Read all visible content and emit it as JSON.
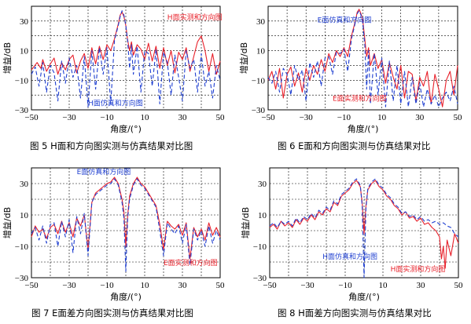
{
  "chart_data": [
    {
      "type": "line",
      "caption": "图 5   H面和方向图实测与仿真结果对比图",
      "xlabel": "角度/(°)",
      "ylabel": "增益/dB",
      "xlim": [
        -50,
        50
      ],
      "ylim": [
        -30,
        40
      ],
      "xticks": [
        -50,
        -30,
        -10,
        10,
        30,
        50
      ],
      "yticks": [
        -30,
        -10,
        10,
        30
      ],
      "grid": true,
      "series": [
        {
          "label": "H面实测和方向图",
          "color": "#e8202a",
          "dash": "solid",
          "x": [
            -50,
            -47,
            -45,
            -44,
            -42,
            -40,
            -38,
            -36,
            -34,
            -32,
            -30,
            -28,
            -26,
            -24,
            -22,
            -20,
            -18,
            -16,
            -14,
            -12,
            -10,
            -8,
            -6,
            -4,
            -3,
            -2,
            -1,
            0,
            1,
            2,
            3,
            4,
            6,
            8,
            10,
            12,
            14,
            16,
            18,
            20,
            22,
            24,
            26,
            28,
            30,
            32,
            34,
            36,
            38,
            40,
            42,
            44,
            46,
            48,
            50
          ],
          "y": [
            -3,
            2,
            -2,
            4,
            -4,
            1,
            5,
            -6,
            2,
            -3,
            4,
            7,
            -5,
            3,
            8,
            -2,
            12,
            1,
            13,
            4,
            14,
            10,
            18,
            28,
            34,
            36,
            33,
            27,
            17,
            10,
            16,
            7,
            14,
            11,
            4,
            15,
            3,
            13,
            -2,
            12,
            0,
            10,
            -5,
            9,
            4,
            12,
            -4,
            6,
            16,
            20,
            10,
            -4,
            8,
            -6,
            3
          ]
        },
        {
          "label": "H面仿真和方向图",
          "color": "#1f3fd0",
          "dash": "5,3",
          "x": [
            -50,
            -48,
            -46,
            -44,
            -42,
            -40,
            -38,
            -36,
            -34,
            -32,
            -30,
            -28,
            -26,
            -24,
            -22,
            -20,
            -18,
            -16,
            -14,
            -12,
            -10,
            -8,
            -6,
            -4,
            -3,
            -2,
            -1,
            0,
            1,
            2,
            3,
            4,
            6,
            8,
            10,
            12,
            14,
            16,
            18,
            20,
            22,
            24,
            26,
            28,
            30,
            32,
            34,
            36,
            38,
            40,
            42,
            44,
            46,
            48,
            50
          ],
          "y": [
            -6,
            -1,
            -14,
            2,
            -18,
            0,
            -5,
            -24,
            3,
            -12,
            5,
            -8,
            0,
            -22,
            6,
            -28,
            10,
            -16,
            12,
            -6,
            12,
            -26,
            17,
            27,
            33,
            37,
            34,
            27,
            16,
            -2,
            14,
            -6,
            13,
            -18,
            10,
            8,
            -14,
            11,
            -26,
            9,
            2,
            -20,
            7,
            -8,
            -24,
            10,
            -2,
            4,
            -18,
            8,
            -14,
            -4,
            -22,
            0,
            -10
          ]
        }
      ],
      "annotations": [
        {
          "text": "H面实测和方向图",
          "color": "#e8202a",
          "x": 22,
          "y": 31
        },
        {
          "text": "H面仿真和方向图",
          "color": "#1f3fd0",
          "x": -20,
          "y": -27
        }
      ]
    },
    {
      "type": "line",
      "caption": "图 6   E面和方向图实测与仿真结果对比",
      "xlabel": "角度/(°)",
      "ylabel": "增益/dB",
      "xlim": [
        -50,
        50
      ],
      "ylim": [
        -30,
        40
      ],
      "xticks": [
        -50,
        -30,
        -10,
        10,
        30,
        50
      ],
      "yticks": [
        -30,
        -10,
        10,
        30
      ],
      "grid": true,
      "series": [
        {
          "label": "E面实测和方向图",
          "color": "#e8202a",
          "dash": "solid",
          "x": [
            -50,
            -48,
            -46,
            -44,
            -42,
            -40,
            -38,
            -36,
            -34,
            -32,
            -30,
            -28,
            -26,
            -24,
            -22,
            -20,
            -18,
            -16,
            -14,
            -12,
            -10,
            -8,
            -6,
            -4,
            -3,
            -2,
            -1,
            0,
            1,
            2,
            3,
            4,
            6,
            8,
            10,
            12,
            14,
            16,
            18,
            20,
            22,
            24,
            26,
            28,
            30,
            32,
            34,
            36,
            38,
            40,
            42,
            44,
            46,
            48,
            50
          ],
          "y": [
            -10,
            -4,
            -16,
            -2,
            -22,
            -6,
            -1,
            -14,
            -5,
            -18,
            -2,
            -10,
            0,
            -6,
            4,
            -4,
            8,
            2,
            10,
            6,
            12,
            6,
            20,
            30,
            36,
            38,
            35,
            30,
            18,
            6,
            12,
            0,
            8,
            -2,
            4,
            -12,
            2,
            -8,
            -16,
            0,
            -22,
            -4,
            -6,
            -24,
            -8,
            -14,
            -4,
            -26,
            -6,
            -16,
            -28,
            -10,
            -4,
            -20,
            0
          ]
        },
        {
          "label": "E面仿真和方向图",
          "color": "#1f3fd0",
          "dash": "5,3",
          "x": [
            -50,
            -48,
            -46,
            -44,
            -42,
            -40,
            -38,
            -36,
            -34,
            -32,
            -30,
            -28,
            -26,
            -24,
            -22,
            -20,
            -18,
            -16,
            -14,
            -12,
            -10,
            -8,
            -6,
            -4,
            -3,
            -2,
            -1,
            0,
            1,
            2,
            3,
            4,
            6,
            8,
            10,
            12,
            14,
            16,
            18,
            20,
            22,
            24,
            26,
            28,
            30,
            32,
            34,
            36,
            38,
            40,
            42,
            44,
            46,
            48,
            50
          ],
          "y": [
            -8,
            -12,
            -4,
            -18,
            -2,
            -6,
            -20,
            0,
            -10,
            -3,
            -24,
            2,
            -8,
            3,
            -14,
            5,
            6,
            -6,
            9,
            8,
            11,
            -4,
            18,
            29,
            35,
            37,
            34,
            28,
            14,
            -16,
            10,
            -26,
            8,
            -20,
            5,
            -28,
            3,
            -24,
            0,
            -26,
            -4,
            -28,
            -8,
            -26,
            -12,
            -28,
            -16,
            -26,
            -20,
            -28,
            -22,
            -18,
            -24,
            -14,
            -26
          ]
        }
      ],
      "annotations": [
        {
          "text": "E面仿真和方向图",
          "color": "#1f3fd0",
          "x": -24,
          "y": 29
        },
        {
          "text": "E面实测和方向图",
          "color": "#e8202a",
          "x": -16,
          "y": -24
        }
      ]
    },
    {
      "type": "line",
      "caption": "图 7   E面差方向图实测与仿真结果对比图",
      "xlabel": "角度/(°)",
      "ylabel": "增益/dB",
      "xlim": [
        -50,
        50
      ],
      "ylim": [
        -30,
        40
      ],
      "xticks": [
        -50,
        -30,
        -10,
        10,
        30,
        50
      ],
      "yticks": [
        -30,
        -10,
        10,
        30
      ],
      "grid": true,
      "series": [
        {
          "label": "E面实测和方向图",
          "color": "#e8202a",
          "dash": "solid",
          "x": [
            -50,
            -48,
            -46,
            -44,
            -42,
            -40,
            -38,
            -36,
            -34,
            -32,
            -30,
            -28,
            -26,
            -24,
            -22,
            -20,
            -18,
            -16,
            -14,
            -12,
            -10,
            -8,
            -6,
            -4,
            -2,
            -1,
            0,
            1,
            2,
            4,
            6,
            8,
            10,
            12,
            14,
            16,
            18,
            20,
            22,
            24,
            26,
            28,
            30,
            32,
            34,
            36,
            38,
            40,
            42,
            44,
            46,
            48,
            50
          ],
          "y": [
            -4,
            3,
            -1,
            1,
            -5,
            2,
            4,
            -2,
            6,
            -1,
            5,
            -4,
            8,
            3,
            10,
            -12,
            18,
            24,
            26,
            28,
            30,
            31,
            34,
            30,
            20,
            12,
            -10,
            10,
            22,
            30,
            34,
            30,
            28,
            24,
            20,
            16,
            4,
            -12,
            6,
            3,
            1,
            4,
            -3,
            5,
            -18,
            2,
            -4,
            1,
            -6,
            5,
            -3,
            2,
            -4
          ]
        },
        {
          "label": "E面仿真和方向图",
          "color": "#1f3fd0",
          "dash": "5,3",
          "x": [
            -50,
            -48,
            -46,
            -44,
            -42,
            -40,
            -38,
            -36,
            -34,
            -32,
            -30,
            -28,
            -26,
            -24,
            -22,
            -20,
            -18,
            -16,
            -14,
            -12,
            -10,
            -8,
            -6,
            -4,
            -2,
            -1,
            0,
            1,
            2,
            4,
            6,
            8,
            10,
            12,
            14,
            16,
            18,
            20,
            22,
            24,
            26,
            28,
            30,
            32,
            34,
            36,
            38,
            40,
            42,
            44,
            46,
            48,
            50
          ],
          "y": [
            -2,
            2,
            -6,
            3,
            -8,
            4,
            5,
            -10,
            6,
            -4,
            7,
            -14,
            9,
            -2,
            11,
            -16,
            18,
            23,
            25,
            27,
            29,
            30,
            33,
            29,
            18,
            8,
            -26,
            8,
            20,
            29,
            33,
            29,
            27,
            23,
            19,
            15,
            0,
            -16,
            5,
            1,
            -2,
            3,
            -8,
            4,
            -22,
            1,
            -6,
            0,
            -10,
            3,
            -8,
            0,
            -6
          ]
        }
      ],
      "annotations": [
        {
          "text": "E面仿真和方向图",
          "color": "#1f3fd0",
          "x": -26,
          "y": 36
        },
        {
          "text": "E面实测和方向图",
          "color": "#e8202a",
          "x": 20,
          "y": -22
        }
      ]
    },
    {
      "type": "line",
      "caption": "图 8   H面差方向图实测与仿真结果对比",
      "xlabel": "角度/(°)",
      "ylabel": "增益/dB",
      "xlim": [
        -50,
        50
      ],
      "ylim": [
        -30,
        40
      ],
      "xticks": [
        -50,
        -30,
        -10,
        10,
        30,
        50
      ],
      "yticks": [
        -30,
        -10,
        10,
        30
      ],
      "grid": true,
      "series": [
        {
          "label": "H面实测和方向图",
          "color": "#e8202a",
          "dash": "solid",
          "x": [
            -50,
            -48,
            -46,
            -44,
            -42,
            -40,
            -38,
            -36,
            -34,
            -32,
            -30,
            -28,
            -26,
            -24,
            -22,
            -20,
            -18,
            -16,
            -14,
            -12,
            -10,
            -8,
            -6,
            -4,
            -2,
            -1,
            0,
            1,
            2,
            4,
            6,
            8,
            10,
            12,
            14,
            16,
            18,
            20,
            22,
            24,
            26,
            28,
            30,
            32,
            34,
            36,
            38,
            40,
            41,
            42,
            43,
            44,
            46,
            48,
            50
          ],
          "y": [
            2,
            4,
            1,
            6,
            3,
            5,
            2,
            7,
            4,
            8,
            6,
            10,
            7,
            12,
            10,
            14,
            12,
            18,
            16,
            22,
            24,
            26,
            30,
            32,
            28,
            18,
            -2,
            16,
            26,
            30,
            32,
            28,
            26,
            22,
            20,
            16,
            14,
            10,
            12,
            8,
            9,
            6,
            8,
            4,
            5,
            2,
            0,
            -4,
            -18,
            -10,
            -24,
            -6,
            -16,
            -2,
            -8
          ]
        },
        {
          "label": "H面仿真和方向图",
          "color": "#1f3fd0",
          "dash": "5,3",
          "x": [
            -50,
            -48,
            -46,
            -44,
            -42,
            -40,
            -38,
            -36,
            -34,
            -32,
            -30,
            -28,
            -26,
            -24,
            -22,
            -20,
            -18,
            -16,
            -14,
            -12,
            -10,
            -8,
            -6,
            -4,
            -2,
            -1,
            0,
            1,
            2,
            4,
            6,
            8,
            10,
            12,
            14,
            16,
            18,
            20,
            22,
            24,
            26,
            28,
            30,
            32,
            34,
            36,
            38,
            40,
            42,
            44,
            46,
            48,
            50
          ],
          "y": [
            3,
            5,
            2,
            6,
            4,
            6,
            3,
            8,
            5,
            9,
            7,
            11,
            8,
            13,
            11,
            15,
            13,
            19,
            17,
            23,
            25,
            27,
            31,
            33,
            29,
            16,
            -30,
            14,
            27,
            31,
            33,
            29,
            27,
            23,
            21,
            17,
            15,
            11,
            12,
            9,
            10,
            7,
            9,
            6,
            7,
            5,
            6,
            4,
            5,
            3,
            2,
            -2,
            -4
          ]
        }
      ],
      "annotations": [
        {
          "text": "H面仿真和方向图",
          "color": "#1f3fd0",
          "x": -22,
          "y": -18
        },
        {
          "text": "H面实测和方向图",
          "color": "#e8202a",
          "x": 14,
          "y": -26
        }
      ]
    }
  ]
}
